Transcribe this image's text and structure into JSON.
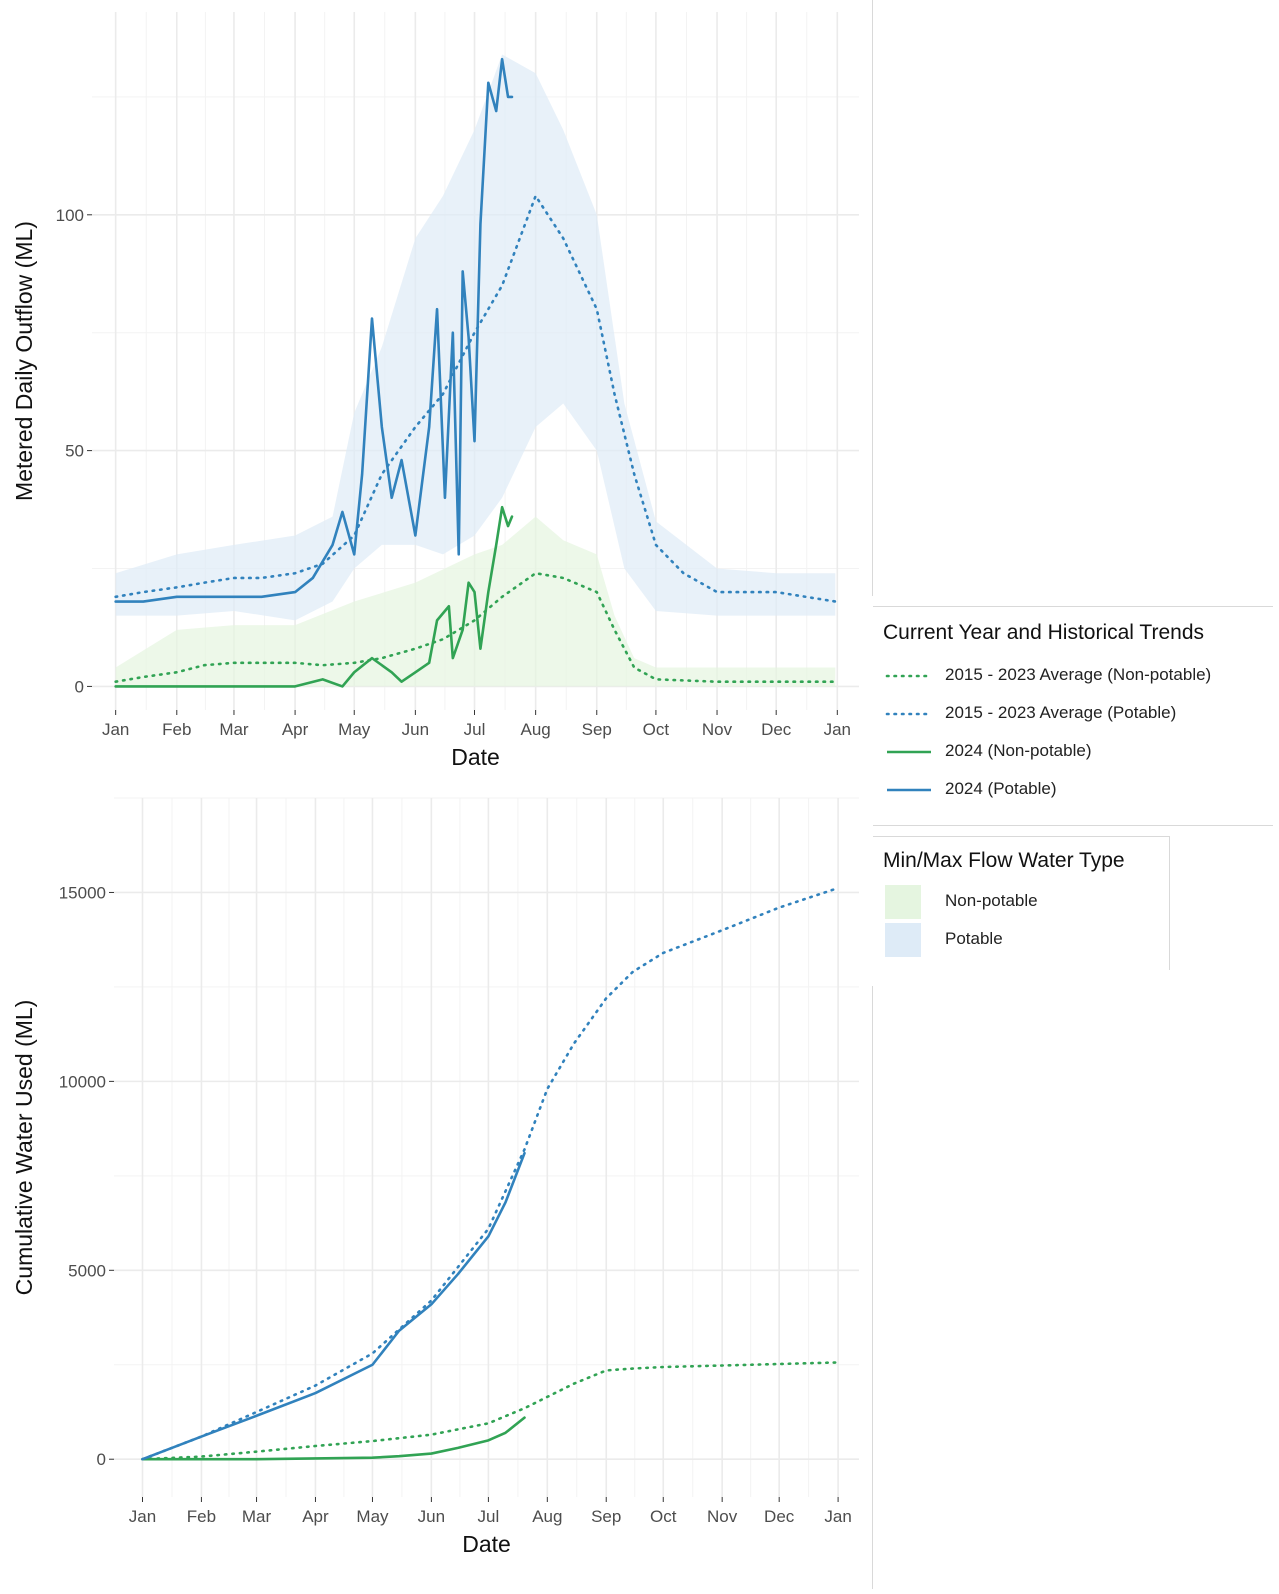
{
  "colors": {
    "potable": "#3182bd",
    "non_potable": "#31a354",
    "potable_band": "#deebf7",
    "non_potable_band": "#e5f5e0",
    "grid": "#ebebeb"
  },
  "chart_data": [
    {
      "type": "line",
      "panel": "top",
      "xlabel": "Date",
      "ylabel": "Metered Daily Outflow (ML)",
      "x_ticks": [
        "Jan",
        "Feb",
        "Mar",
        "Apr",
        "May",
        "Jun",
        "Jul",
        "Aug",
        "Sep",
        "Oct",
        "Nov",
        "Dec",
        "Jan"
      ],
      "y_ticks": [
        0,
        50,
        100
      ],
      "ylim": [
        -5,
        143
      ],
      "grid": true,
      "bands": [
        {
          "name": "Non-potable",
          "x": [
            "2024-01-01",
            "2024-02-01",
            "2024-03-01",
            "2024-04-01",
            "2024-05-01",
            "2024-06-01",
            "2024-07-01",
            "2024-07-15",
            "2024-08-01",
            "2024-08-15",
            "2024-09-01",
            "2024-09-10",
            "2024-09-20",
            "2024-10-01",
            "2024-11-01",
            "2024-12-01",
            "2024-12-31"
          ],
          "min": [
            0,
            0,
            0,
            0,
            0,
            0,
            0,
            0,
            0,
            0,
            0,
            0,
            0,
            0,
            0,
            0,
            0
          ],
          "max": [
            4,
            12,
            13,
            13,
            18,
            22,
            28,
            30,
            36,
            31,
            28,
            15,
            6,
            4,
            4,
            4,
            4
          ]
        },
        {
          "name": "Potable",
          "x": [
            "2024-01-01",
            "2024-02-01",
            "2024-03-01",
            "2024-04-01",
            "2024-04-20",
            "2024-05-01",
            "2024-05-15",
            "2024-06-01",
            "2024-06-15",
            "2024-07-01",
            "2024-07-15",
            "2024-08-01",
            "2024-08-15",
            "2024-09-01",
            "2024-09-15",
            "2024-10-01",
            "2024-11-01",
            "2024-12-01",
            "2024-12-31"
          ],
          "min": [
            15,
            15,
            16,
            14,
            18,
            25,
            30,
            30,
            28,
            32,
            40,
            55,
            60,
            50,
            25,
            16,
            15,
            15,
            15
          ],
          "max": [
            24,
            28,
            30,
            32,
            36,
            58,
            72,
            95,
            104,
            118,
            134,
            130,
            118,
            100,
            60,
            35,
            25,
            24,
            24
          ]
        }
      ],
      "series": [
        {
          "name": "2015 - 2023 Average (Non-potable)",
          "style": "dotted",
          "color": "non_potable",
          "x": [
            "2024-01-01",
            "2024-01-15",
            "2024-02-01",
            "2024-02-15",
            "2024-03-01",
            "2024-03-15",
            "2024-04-01",
            "2024-04-15",
            "2024-05-01",
            "2024-05-15",
            "2024-06-01",
            "2024-06-15",
            "2024-07-01",
            "2024-07-15",
            "2024-08-01",
            "2024-08-15",
            "2024-09-01",
            "2024-09-10",
            "2024-09-20",
            "2024-10-01",
            "2024-11-01",
            "2024-12-01",
            "2024-12-31"
          ],
          "values": [
            1,
            2,
            3,
            4.5,
            5,
            5,
            5,
            4.5,
            5,
            6,
            8,
            10,
            14,
            19,
            24,
            23,
            20,
            12,
            4,
            1.5,
            1,
            1,
            1
          ]
        },
        {
          "name": "2015 - 2023 Average (Potable)",
          "style": "dotted",
          "color": "potable",
          "x": [
            "2024-01-01",
            "2024-01-15",
            "2024-02-01",
            "2024-02-15",
            "2024-03-01",
            "2024-03-15",
            "2024-04-01",
            "2024-04-15",
            "2024-05-01",
            "2024-05-15",
            "2024-06-01",
            "2024-06-15",
            "2024-07-01",
            "2024-07-15",
            "2024-08-01",
            "2024-08-15",
            "2024-09-01",
            "2024-09-10",
            "2024-09-20",
            "2024-10-01",
            "2024-10-15",
            "2024-11-01",
            "2024-12-01",
            "2024-12-31"
          ],
          "values": [
            19,
            20,
            21,
            22,
            23,
            23,
            24,
            26,
            32,
            45,
            55,
            62,
            75,
            85,
            104,
            95,
            80,
            62,
            45,
            30,
            24,
            20,
            20,
            18
          ]
        },
        {
          "name": "2024 (Non-potable)",
          "style": "solid",
          "color": "non_potable",
          "x": [
            "2024-01-01",
            "2024-02-01",
            "2024-03-01",
            "2024-04-01",
            "2024-04-15",
            "2024-04-25",
            "2024-05-01",
            "2024-05-10",
            "2024-05-20",
            "2024-05-25",
            "2024-06-01",
            "2024-06-08",
            "2024-06-12",
            "2024-06-18",
            "2024-06-20",
            "2024-06-25",
            "2024-06-28",
            "2024-07-01",
            "2024-07-04",
            "2024-07-08",
            "2024-07-12",
            "2024-07-15",
            "2024-07-18",
            "2024-07-20"
          ],
          "values": [
            0,
            0,
            0,
            0,
            1.5,
            0,
            3,
            6,
            3,
            1,
            3,
            5,
            14,
            17,
            6,
            12,
            22,
            20,
            8,
            20,
            30,
            38,
            34,
            36
          ]
        },
        {
          "name": "2024 (Potable)",
          "style": "solid",
          "color": "potable",
          "x": [
            "2024-01-01",
            "2024-01-15",
            "2024-02-01",
            "2024-02-15",
            "2024-03-01",
            "2024-03-15",
            "2024-04-01",
            "2024-04-10",
            "2024-04-20",
            "2024-04-25",
            "2024-05-01",
            "2024-05-05",
            "2024-05-10",
            "2024-05-15",
            "2024-05-20",
            "2024-05-25",
            "2024-06-01",
            "2024-06-08",
            "2024-06-12",
            "2024-06-16",
            "2024-06-20",
            "2024-06-23",
            "2024-06-25",
            "2024-06-28",
            "2024-07-01",
            "2024-07-04",
            "2024-07-08",
            "2024-07-12",
            "2024-07-15",
            "2024-07-18",
            "2024-07-20"
          ],
          "values": [
            18,
            18,
            19,
            19,
            19,
            19,
            20,
            23,
            30,
            37,
            28,
            45,
            78,
            55,
            40,
            48,
            32,
            55,
            80,
            40,
            75,
            28,
            88,
            74,
            52,
            98,
            128,
            122,
            133,
            125,
            125
          ]
        }
      ]
    },
    {
      "type": "line",
      "panel": "bottom",
      "xlabel": "Date",
      "ylabel": "Cumulative Water Used (ML)",
      "x_ticks": [
        "Jan",
        "Feb",
        "Mar",
        "Apr",
        "May",
        "Jun",
        "Jul",
        "Aug",
        "Sep",
        "Oct",
        "Nov",
        "Dec",
        "Jan"
      ],
      "y_ticks": [
        0,
        5000,
        10000,
        15000
      ],
      "ylim": [
        -1000,
        17500
      ],
      "grid": true,
      "series": [
        {
          "name": "2015 - 2023 Average (Non-potable)",
          "style": "dotted",
          "color": "non_potable",
          "x": [
            "2024-01-01",
            "2024-02-01",
            "2024-03-01",
            "2024-04-01",
            "2024-05-01",
            "2024-06-01",
            "2024-07-01",
            "2024-07-20",
            "2024-08-01",
            "2024-08-15",
            "2024-09-01",
            "2024-09-15",
            "2024-10-01",
            "2024-11-01",
            "2024-12-01",
            "2024-12-31"
          ],
          "values": [
            0,
            70,
            200,
            350,
            480,
            650,
            950,
            1350,
            1650,
            2000,
            2350,
            2400,
            2440,
            2480,
            2520,
            2560
          ]
        },
        {
          "name": "2015 - 2023 Average (Potable)",
          "style": "dotted",
          "color": "potable",
          "x": [
            "2024-01-01",
            "2024-02-01",
            "2024-03-01",
            "2024-04-01",
            "2024-05-01",
            "2024-06-01",
            "2024-07-01",
            "2024-07-20",
            "2024-08-01",
            "2024-08-15",
            "2024-09-01",
            "2024-09-15",
            "2024-10-01",
            "2024-11-01",
            "2024-12-01",
            "2024-12-31"
          ],
          "values": [
            0,
            600,
            1250,
            1950,
            2800,
            4200,
            6100,
            8200,
            9800,
            11000,
            12200,
            12900,
            13400,
            14000,
            14600,
            15100
          ]
        },
        {
          "name": "2024 (Non-potable)",
          "style": "solid",
          "color": "non_potable",
          "x": [
            "2024-01-01",
            "2024-02-01",
            "2024-03-01",
            "2024-04-01",
            "2024-05-01",
            "2024-05-15",
            "2024-06-01",
            "2024-06-15",
            "2024-07-01",
            "2024-07-10",
            "2024-07-20"
          ],
          "values": [
            0,
            0,
            0,
            20,
            40,
            80,
            150,
            300,
            500,
            700,
            1100
          ]
        },
        {
          "name": "2024 (Potable)",
          "style": "solid",
          "color": "potable",
          "x": [
            "2024-01-01",
            "2024-02-01",
            "2024-03-01",
            "2024-04-01",
            "2024-05-01",
            "2024-05-15",
            "2024-06-01",
            "2024-06-15",
            "2024-07-01",
            "2024-07-10",
            "2024-07-20"
          ],
          "values": [
            0,
            600,
            1150,
            1750,
            2500,
            3400,
            4100,
            4900,
            5900,
            6800,
            8100
          ]
        }
      ]
    }
  ],
  "legend_trends": {
    "title": "Current Year and Historical Trends",
    "items": [
      {
        "label": "2015 - 2023 Average (Non-potable)",
        "color": "non_potable",
        "style": "dotted"
      },
      {
        "label": "2015 - 2023 Average (Potable)",
        "color": "potable",
        "style": "dotted"
      },
      {
        "label": "2024 (Non-potable)",
        "color": "non_potable",
        "style": "solid"
      },
      {
        "label": "2024 (Potable)",
        "color": "potable",
        "style": "solid"
      }
    ]
  },
  "legend_flow": {
    "title": "Min/Max Flow Water Type",
    "items": [
      {
        "label": "Non-potable",
        "color": "non_potable_band"
      },
      {
        "label": "Potable",
        "color": "potable_band"
      }
    ]
  }
}
